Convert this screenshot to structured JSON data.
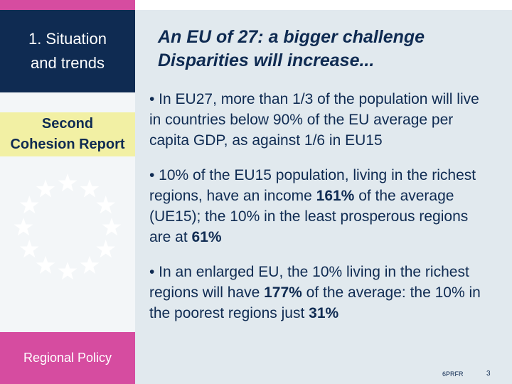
{
  "sidebar": {
    "section_title": "1. Situation\nand trends",
    "report_label": "Second\nCohesion Report",
    "footer_label": "Regional Policy",
    "logo_icon": "eu-flag-stars-icon"
  },
  "main": {
    "headline_line1": "An EU of 27: a bigger challenge",
    "headline_line2": "Disparities will increase...",
    "bullet1": "• In EU27, more than 1/3 of the population will live in countries below 90% of the EU average per capita GDP, as against 1/6 in EU15",
    "bullet2": {
      "t1": "• 10% of the EU15 population, living in the richest regions, have an income ",
      "b1": "161%",
      "t2": " of the average (UE15); the 10% in the least prosperous regions are at ",
      "b2": "61%"
    },
    "bullet3": {
      "t1": "• In an enlarged EU, the 10% living in the richest regions will have ",
      "b1": "177%",
      "t2": " of the average: the 10% in the poorest regions just ",
      "b2": "31%"
    }
  },
  "footer": {
    "note": "6PRFR",
    "page": "3"
  },
  "colors": {
    "navy": "#0f2b52",
    "pink": "#d64ca0",
    "yellow": "#f2f0a4",
    "background": "#e1e9ee"
  }
}
